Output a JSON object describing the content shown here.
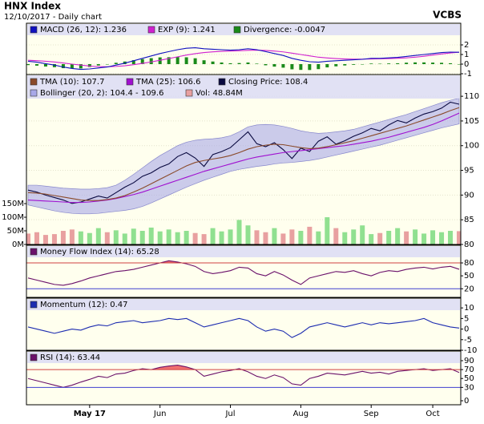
{
  "header": {
    "title": "HNX Index",
    "subtitle": "12/10/2017 - Daily chart",
    "brand": "VCBS"
  },
  "chart_data": [
    {
      "type": "line",
      "ylim": [
        -1,
        3
      ],
      "yticks": [
        2,
        1,
        0,
        -1
      ],
      "xlim": [
        0,
        49
      ],
      "grid": true,
      "series": [
        {
          "name": "MACD (26, 12): 1.236",
          "kind": "line",
          "color": "#1010c0",
          "values": [
            0.3,
            0.2,
            0.05,
            -0.1,
            -0.3,
            -0.45,
            -0.55,
            -0.5,
            -0.4,
            -0.3,
            -0.1,
            0.1,
            0.35,
            0.6,
            0.85,
            1.1,
            1.3,
            1.5,
            1.65,
            1.7,
            1.6,
            1.55,
            1.5,
            1.45,
            1.5,
            1.6,
            1.5,
            1.3,
            1.1,
            0.9,
            0.6,
            0.4,
            0.25,
            0.2,
            0.3,
            0.35,
            0.4,
            0.45,
            0.5,
            0.6,
            0.6,
            0.65,
            0.7,
            0.8,
            0.9,
            1.0,
            1.1,
            1.2,
            1.25,
            1.236
          ]
        },
        {
          "name": "EXP (9): 1.241",
          "kind": "line",
          "color": "#d020d0",
          "values": [
            0.4,
            0.36,
            0.3,
            0.22,
            0.12,
            0.0,
            -0.1,
            -0.2,
            -0.26,
            -0.28,
            -0.24,
            -0.17,
            -0.06,
            0.08,
            0.23,
            0.4,
            0.58,
            0.76,
            0.94,
            1.09,
            1.2,
            1.28,
            1.33,
            1.36,
            1.39,
            1.43,
            1.45,
            1.42,
            1.36,
            1.27,
            1.14,
            1.0,
            0.86,
            0.72,
            0.64,
            0.58,
            0.54,
            0.52,
            0.52,
            0.54,
            0.56,
            0.58,
            0.61,
            0.65,
            0.72,
            0.82,
            0.94,
            1.06,
            1.16,
            1.241
          ]
        },
        {
          "name": "Divergence: -0.0047",
          "kind": "bar",
          "color": "#1a8a1a",
          "values": [
            -0.1,
            -0.16,
            -0.25,
            -0.32,
            -0.42,
            -0.45,
            -0.45,
            -0.3,
            -0.14,
            -0.02,
            0.14,
            0.27,
            0.41,
            0.52,
            0.62,
            0.7,
            0.72,
            0.74,
            0.71,
            0.61,
            0.4,
            0.27,
            0.17,
            0.09,
            0.11,
            0.17,
            0.05,
            -0.12,
            -0.26,
            -0.37,
            -0.54,
            -0.6,
            -0.61,
            -0.52,
            -0.34,
            -0.23,
            -0.14,
            -0.07,
            -0.02,
            0.06,
            0.04,
            0.07,
            0.09,
            0.15,
            0.18,
            0.18,
            0.16,
            0.14,
            0.09,
            -0.0047
          ]
        }
      ]
    },
    {
      "type": "line",
      "ylim": [
        80,
        114.4
      ],
      "yticks": [
        110,
        105,
        100,
        95,
        90,
        85,
        80
      ],
      "xlim": [
        0,
        49
      ],
      "grid": true,
      "y2lim": [
        0,
        624
      ],
      "y2ticks": [
        {
          "value": 150,
          "label": "150M"
        },
        {
          "value": 100,
          "label": "100M"
        },
        {
          "value": 50,
          "label": "50M"
        },
        {
          "value": 0,
          "label": "0M"
        }
      ],
      "series": [
        {
          "name": "TMA (10): 107.7",
          "kind": "line",
          "color": "#8a4a2a",
          "values": [
            90.5,
            90.4,
            90.2,
            89.9,
            89.6,
            89.3,
            89.0,
            88.9,
            88.9,
            89.1,
            89.4,
            89.9,
            90.6,
            91.4,
            92.3,
            93.2,
            94.1,
            95.0,
            95.9,
            96.6,
            97.0,
            97.3,
            97.6,
            98.0,
            98.6,
            99.3,
            99.8,
            100.1,
            100.3,
            100.2,
            99.9,
            99.6,
            99.4,
            99.5,
            99.8,
            100.2,
            100.6,
            101.0,
            101.5,
            102.0,
            102.5,
            103.0,
            103.5,
            104.0,
            104.6,
            105.2,
            105.8,
            106.4,
            107.1,
            107.7
          ]
        },
        {
          "name": "TMA (25): 106.6",
          "kind": "line",
          "color": "#a010d0",
          "values": [
            89.0,
            88.9,
            88.8,
            88.7,
            88.6,
            88.5,
            88.5,
            88.6,
            88.8,
            89.0,
            89.3,
            89.7,
            90.1,
            90.6,
            91.2,
            91.8,
            92.4,
            93.0,
            93.6,
            94.2,
            94.8,
            95.3,
            95.8,
            96.3,
            96.8,
            97.3,
            97.7,
            98.0,
            98.3,
            98.6,
            98.8,
            99.0,
            99.2,
            99.4,
            99.6,
            99.8,
            100.0,
            100.3,
            100.6,
            100.9,
            101.3,
            101.7,
            102.2,
            102.7,
            103.2,
            103.7,
            104.3,
            105.0,
            105.8,
            106.6
          ]
        },
        {
          "name": "Closing Price: 108.4",
          "kind": "line",
          "color": "#0a0a40",
          "values": [
            91.0,
            90.6,
            90.0,
            89.5,
            89.0,
            88.3,
            88.6,
            89.2,
            89.8,
            89.4,
            90.5,
            91.6,
            92.5,
            93.8,
            94.5,
            95.6,
            96.3,
            97.8,
            98.6,
            97.5,
            95.8,
            98.2,
            98.8,
            99.6,
            101.2,
            102.8,
            100.4,
            99.8,
            100.6,
            99.2,
            97.4,
            99.5,
            98.8,
            100.9,
            101.8,
            100.3,
            101.0,
            101.9,
            102.6,
            103.5,
            103.0,
            104.2,
            105.1,
            104.6,
            105.6,
            106.4,
            106.9,
            107.6,
            108.8,
            108.4
          ]
        },
        {
          "name": "Bollinger (20, 2): 104.4 - 109.6",
          "kind": "band",
          "color": "#a8a8e8",
          "upper": [
            92.0,
            92.0,
            91.8,
            91.6,
            91.4,
            91.3,
            91.2,
            91.2,
            91.3,
            91.5,
            92.0,
            93.0,
            94.2,
            95.5,
            96.8,
            98.0,
            99.0,
            100.0,
            100.7,
            101.1,
            101.3,
            101.4,
            101.6,
            102.0,
            102.8,
            103.8,
            104.2,
            104.3,
            104.2,
            103.9,
            103.5,
            103.0,
            102.7,
            102.5,
            102.6,
            102.8,
            103.0,
            103.3,
            103.8,
            104.3,
            104.8,
            105.3,
            105.8,
            106.3,
            106.9,
            107.5,
            108.1,
            108.7,
            109.2,
            109.6
          ],
          "lower": [
            88.0,
            87.6,
            87.2,
            86.8,
            86.5,
            86.3,
            86.2,
            86.2,
            86.3,
            86.5,
            86.7,
            86.9,
            87.2,
            87.7,
            88.4,
            89.2,
            90.0,
            90.8,
            91.6,
            92.3,
            93.0,
            93.6,
            94.2,
            94.8,
            95.2,
            95.5,
            95.8,
            96.0,
            96.3,
            96.5,
            96.6,
            96.8,
            97.0,
            97.3,
            97.7,
            98.1,
            98.5,
            98.9,
            99.3,
            99.7,
            100.1,
            100.6,
            101.1,
            101.6,
            102.1,
            102.6,
            103.1,
            103.6,
            104.0,
            104.4
          ]
        },
        {
          "name": "Vol: 48.84M",
          "kind": "bar",
          "axis": "y2",
          "color": "#e8a0a0",
          "up_color": "#90e090",
          "down_color": "#e8a0a0",
          "values": [
            40,
            45,
            35,
            38,
            50,
            55,
            48,
            42,
            60,
            45,
            52,
            40,
            58,
            50,
            62,
            48,
            55,
            45,
            50,
            42,
            38,
            60,
            48,
            55,
            90,
            70,
            52,
            45,
            60,
            40,
            55,
            50,
            65,
            48,
            100,
            60,
            45,
            55,
            70,
            38,
            42,
            50,
            60,
            48,
            55,
            40,
            52,
            45,
            50,
            48.84
          ]
        }
      ]
    },
    {
      "type": "line",
      "ylim": [
        0,
        121
      ],
      "yticks": [
        80,
        50,
        20
      ],
      "xlim": [
        0,
        49
      ],
      "grid": false,
      "ref_lines": [
        {
          "value": 80,
          "color": "#d04040"
        },
        {
          "value": 20,
          "color": "#4040d0"
        }
      ],
      "series": [
        {
          "name": "Money Flow Index (14): 65.28",
          "kind": "line",
          "color": "#6a106a",
          "fill_above": {
            "value": 80,
            "color": "#f07070"
          },
          "values": [
            45,
            40,
            35,
            30,
            28,
            32,
            38,
            45,
            50,
            55,
            60,
            62,
            65,
            70,
            75,
            80,
            85,
            82,
            78,
            72,
            60,
            55,
            58,
            62,
            70,
            68,
            55,
            50,
            60,
            52,
            40,
            30,
            45,
            50,
            55,
            60,
            58,
            62,
            55,
            50,
            58,
            62,
            60,
            65,
            68,
            70,
            66,
            70,
            72,
            65.28
          ]
        }
      ]
    },
    {
      "type": "line",
      "ylim": [
        -10,
        14.6
      ],
      "yticks": [
        10,
        5,
        0,
        -5,
        -10
      ],
      "xlim": [
        0,
        49
      ],
      "grid": false,
      "series": [
        {
          "name": "Momentum (12): 0.47",
          "kind": "line",
          "color": "#1c2cb0",
          "values": [
            1,
            0,
            -1,
            -2,
            -1,
            0,
            -0.5,
            1,
            2,
            1.5,
            3,
            3.5,
            4,
            3,
            3.5,
            4,
            5,
            4.5,
            5,
            3,
            1,
            2,
            3,
            4,
            5,
            4,
            1,
            -1,
            0,
            -1,
            -4,
            -2,
            1,
            2,
            3,
            2,
            1,
            2,
            3,
            2,
            3,
            2.5,
            3,
            3.5,
            4,
            5,
            3,
            2,
            1,
            0.47
          ]
        }
      ]
    },
    {
      "type": "line",
      "ylim": [
        -9,
        111.6
      ],
      "yticks": [
        90,
        70,
        50,
        30,
        0
      ],
      "xlim": [
        0,
        49
      ],
      "grid": false,
      "ref_lines": [
        {
          "value": 70,
          "color": "#d04040"
        },
        {
          "value": 30,
          "color": "#4040d0"
        }
      ],
      "xticks": [
        {
          "value": 7,
          "label": "May 17"
        },
        {
          "value": 15,
          "label": "Jun"
        },
        {
          "value": 23,
          "label": "Jul"
        },
        {
          "value": 31,
          "label": "Aug"
        },
        {
          "value": 39,
          "label": "Sep"
        },
        {
          "value": 46,
          "label": "Oct"
        }
      ],
      "series": [
        {
          "name": "RSI (14): 63.44",
          "kind": "line",
          "color": "#6a106a",
          "fill_above": {
            "value": 70,
            "color": "#f07070"
          },
          "values": [
            50,
            45,
            40,
            35,
            30,
            35,
            42,
            48,
            55,
            52,
            60,
            62,
            68,
            72,
            70,
            75,
            78,
            80,
            76,
            70,
            55,
            60,
            65,
            68,
            72,
            65,
            55,
            50,
            58,
            52,
            38,
            35,
            50,
            55,
            62,
            60,
            58,
            62,
            66,
            62,
            64,
            60,
            66,
            68,
            70,
            72,
            68,
            70,
            72,
            63.44
          ]
        }
      ]
    }
  ]
}
